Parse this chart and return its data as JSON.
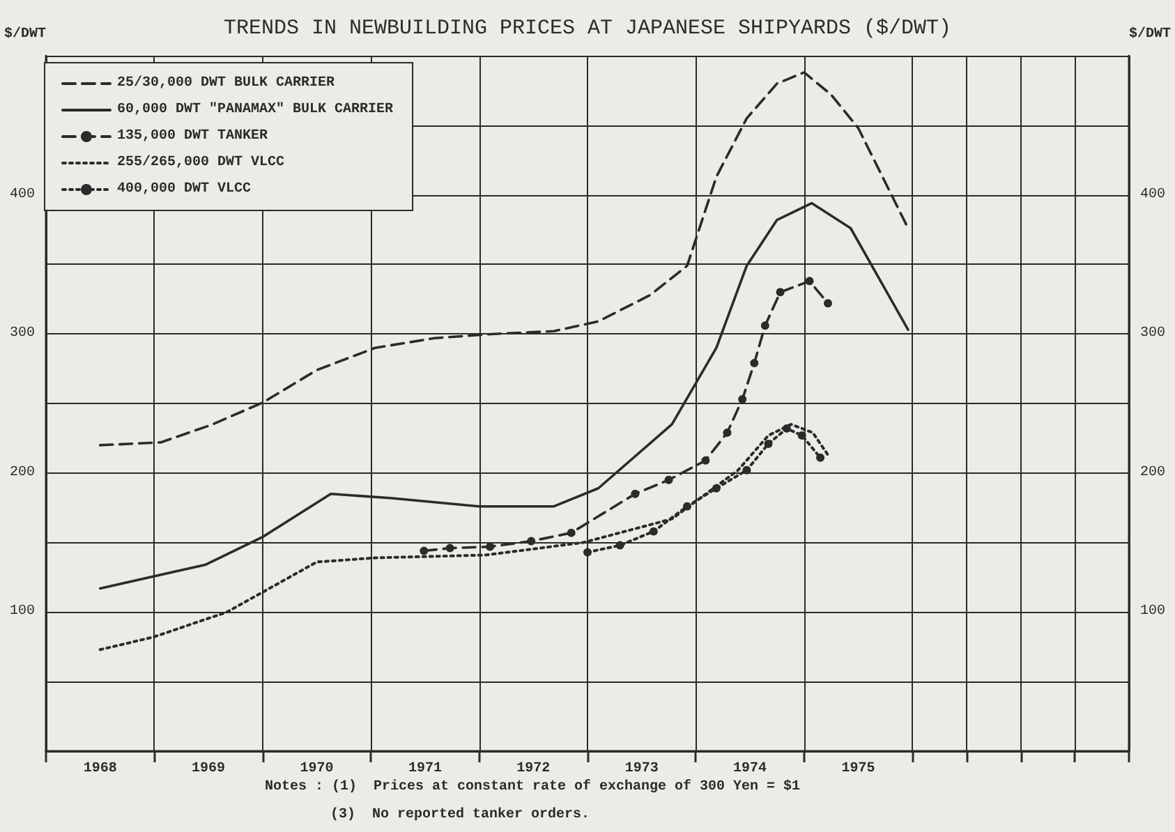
{
  "chart_data": {
    "type": "line",
    "title": "TRENDS IN NEWBUILDING PRICES AT JAPANESE SHIPYARDS ($/DWT)",
    "ylabel": "$/DWT",
    "y2label": "$/DWT",
    "annotations": [
      "Notes : (1)  Prices at constant rate of exchange of 300 Yen = $1",
      "(3)  No reported tanker orders."
    ],
    "xlim": [
      1968,
      1978
    ],
    "xticks": [
      {
        "value": 1968,
        "label": null
      },
      {
        "value": 1968.5,
        "label": "1968"
      },
      {
        "value": 1969,
        "label": null
      },
      {
        "value": 1969.5,
        "label": "1969"
      },
      {
        "value": 1970,
        "label": null
      },
      {
        "value": 1970.5,
        "label": "1970"
      },
      {
        "value": 1971,
        "label": null
      },
      {
        "value": 1971.5,
        "label": "1971"
      },
      {
        "value": 1972,
        "label": null
      },
      {
        "value": 1972.5,
        "label": "1972"
      },
      {
        "value": 1973,
        "label": null
      },
      {
        "value": 1973.5,
        "label": "1973"
      },
      {
        "value": 1974,
        "label": null
      },
      {
        "value": 1974.5,
        "label": "1974"
      },
      {
        "value": 1975,
        "label": null
      },
      {
        "value": 1975.5,
        "label": "1975"
      },
      {
        "value": 1976,
        "label": null
      },
      {
        "value": 1976.5,
        "label": null
      },
      {
        "value": 1977,
        "label": null
      },
      {
        "value": 1977.5,
        "label": null
      },
      {
        "value": 1978,
        "label": null
      }
    ],
    "ylim": [
      0,
      500
    ],
    "yticks": [
      {
        "value": 0,
        "label": null
      },
      {
        "value": 50,
        "label": null
      },
      100,
      {
        "value": 150,
        "label": null
      },
      200,
      {
        "value": 250,
        "label": null
      },
      300,
      {
        "value": 350,
        "label": null
      },
      400,
      {
        "value": 450,
        "label": null
      },
      {
        "value": 500,
        "label": null
      }
    ],
    "y2lim": [
      0,
      500
    ],
    "y2ticks": [
      100,
      200,
      300,
      400
    ],
    "grid": true,
    "legend": "top left",
    "series": [
      {
        "name": "25/30,000 DWT BULK CARRIER",
        "color": "#2b2b2b",
        "line_style": "dashed",
        "marker": "none",
        "x": [
          1968.5,
          1969.06,
          1969.54,
          1970.01,
          1970.5,
          1971.04,
          1971.59,
          1972.14,
          1972.69,
          1973.1,
          1973.58,
          1973.92,
          1974.19,
          1974.47,
          1974.75,
          1975.0,
          1975.25,
          1975.5,
          1975.96
        ],
        "values": [
          220,
          222,
          235,
          251,
          274,
          290,
          297,
          300,
          302,
          309,
          328,
          349,
          413,
          455,
          480,
          488,
          472,
          448,
          376
        ]
      },
      {
        "name": "60,000 DWT \"PANAMAX\" BULK CARRIER",
        "color": "#2b2b2b",
        "line_style": "solid",
        "marker": "none",
        "x": [
          1968.5,
          1969.47,
          1970.0,
          1970.63,
          1971.18,
          1972.0,
          1972.69,
          1973.1,
          1973.78,
          1974.19,
          1974.47,
          1974.75,
          1975.07,
          1975.43,
          1975.96
        ],
        "values": [
          117,
          134,
          154,
          185,
          182,
          176,
          176,
          189,
          235,
          290,
          349,
          382,
          394,
          376,
          303
        ]
      },
      {
        "name": "135,000 DWT TANKER",
        "color": "#2b2b2b",
        "line_style": "dashed",
        "marker": "circle",
        "x": [
          1971.49,
          1971.73,
          1972.1,
          1972.48,
          1972.85,
          1973.44,
          1973.75,
          1974.09,
          1974.29,
          1974.43,
          1974.54,
          1974.64,
          1974.78,
          1975.05,
          1975.22
        ],
        "values": [
          144,
          146,
          147,
          151,
          157,
          185,
          195,
          209,
          229,
          253,
          279,
          306,
          330,
          338,
          322
        ]
      },
      {
        "name": "255/265,000 DWT VLCC",
        "color": "#2b2b2b",
        "line_style": "dotted",
        "marker": "none",
        "x": [
          1968.5,
          1968.99,
          1969.67,
          1969.97,
          1970.5,
          1971.04,
          1972.06,
          1972.96,
          1973.78,
          1974.39,
          1974.67,
          1974.88,
          1975.08,
          1975.22
        ],
        "values": [
          73,
          82,
          100,
          113,
          136,
          139,
          141,
          150,
          167,
          202,
          227,
          235,
          229,
          213
        ]
      },
      {
        "name": "400,000 DWT VLCC",
        "color": "#2b2b2b",
        "line_style": "dotted",
        "marker": "circle",
        "x": [
          1973.0,
          1973.3,
          1973.61,
          1973.92,
          1974.19,
          1974.47,
          1974.67,
          1974.84,
          1974.98,
          1975.15
        ],
        "values": [
          143,
          148,
          158,
          176,
          189,
          202,
          221,
          232,
          227,
          211
        ]
      }
    ]
  }
}
